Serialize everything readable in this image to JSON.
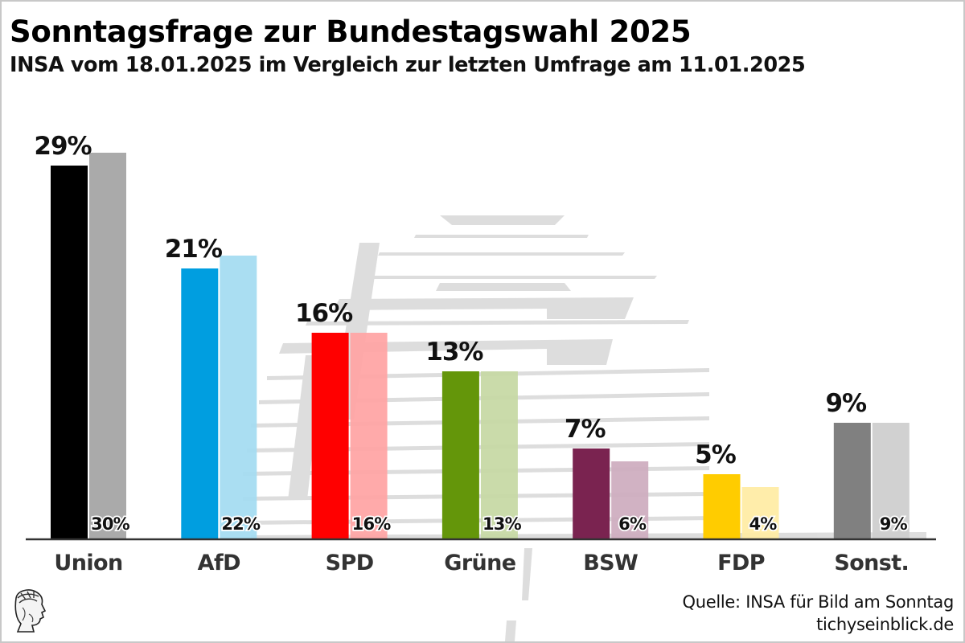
{
  "chart_data": {
    "type": "bar",
    "title": "Sonntagsfrage zur Bundestagswahl 2025",
    "subtitle": "INSA vom 18.01.2025 im Vergleich zur letzten Umfrage am 11.01.2025",
    "xlabel": "",
    "ylabel": "",
    "ylim": [
      0,
      30
    ],
    "grid": false,
    "categories": [
      "Union",
      "AfD",
      "SPD",
      "Grüne",
      "BSW",
      "FDP",
      "Sonst."
    ],
    "series": [
      {
        "name": "18.01.2025",
        "values": [
          29,
          21,
          16,
          13,
          7,
          5,
          9
        ],
        "labels": [
          "29%",
          "21%",
          "16%",
          "13%",
          "7%",
          "5%",
          "9%"
        ],
        "colors": [
          "#000000",
          "#009EE0",
          "#FF0000",
          "#64960A",
          "#7A2350",
          "#FFCC00",
          "#808080"
        ]
      },
      {
        "name": "11.01.2025",
        "values": [
          30,
          22,
          16,
          13,
          6,
          4,
          9
        ],
        "labels": [
          "30%",
          "22%",
          "16%",
          "13%",
          "6%",
          "4%",
          "9%"
        ],
        "colors": [
          "#A3A3A3",
          "#A3DBF1",
          "#FFA3A3",
          "#C5D8A3",
          "#CDABBE",
          "#FFEBA3",
          "#CDCDCD"
        ]
      }
    ]
  },
  "footer": {
    "source": "Quelle: INSA für Bild am Sonntag",
    "site": "tichyseinblick.de"
  },
  "icons": {
    "logo": "hermes-head-logo-icon",
    "watermark": "reichstag-dome-watermark"
  }
}
